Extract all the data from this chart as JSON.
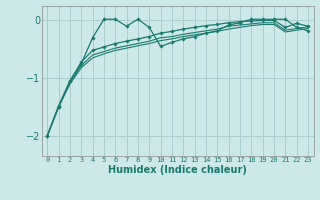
{
  "xlabel": "Humidex (Indice chaleur)",
  "bg_color": "#cce8e8",
  "grid_color": "#aacccc",
  "line_color": "#1a7a6e",
  "xlim": [
    -0.5,
    23.5
  ],
  "ylim": [
    -2.35,
    0.25
  ],
  "yticks": [
    0,
    -1,
    -2
  ],
  "xticks": [
    0,
    1,
    2,
    3,
    4,
    5,
    6,
    7,
    8,
    9,
    10,
    11,
    12,
    13,
    14,
    15,
    16,
    17,
    18,
    19,
    20,
    21,
    22,
    23
  ],
  "series": [
    {
      "x": [
        0,
        1,
        2,
        3,
        4,
        5,
        6,
        7,
        8,
        9,
        10,
        11,
        12,
        13,
        14,
        15,
        16,
        17,
        18,
        19,
        20,
        21,
        22,
        23
      ],
      "y": [
        -2.0,
        -1.5,
        -1.05,
        -0.75,
        -0.3,
        0.02,
        0.02,
        -0.1,
        0.02,
        -0.12,
        -0.45,
        -0.38,
        -0.32,
        -0.28,
        -0.22,
        -0.18,
        -0.08,
        -0.04,
        0.02,
        0.02,
        0.02,
        0.02,
        -0.12,
        -0.18
      ],
      "marker": true,
      "linewidth": 0.9
    },
    {
      "x": [
        0,
        1,
        2,
        3,
        4,
        5,
        6,
        7,
        8,
        9,
        10,
        11,
        12,
        13,
        14,
        15,
        16,
        17,
        18,
        19,
        20,
        21,
        22,
        23
      ],
      "y": [
        -2.0,
        -1.5,
        -1.1,
        -0.82,
        -0.65,
        -0.58,
        -0.52,
        -0.48,
        -0.44,
        -0.4,
        -0.35,
        -0.32,
        -0.28,
        -0.25,
        -0.22,
        -0.19,
        -0.15,
        -0.12,
        -0.09,
        -0.07,
        -0.07,
        -0.2,
        -0.17,
        -0.14
      ],
      "marker": false,
      "linewidth": 0.8
    },
    {
      "x": [
        0,
        1,
        2,
        3,
        4,
        5,
        6,
        7,
        8,
        9,
        10,
        11,
        12,
        13,
        14,
        15,
        16,
        17,
        18,
        19,
        20,
        21,
        22,
        23
      ],
      "y": [
        -2.0,
        -1.5,
        -1.08,
        -0.78,
        -0.6,
        -0.54,
        -0.48,
        -0.44,
        -0.4,
        -0.36,
        -0.3,
        -0.28,
        -0.24,
        -0.21,
        -0.18,
        -0.15,
        -0.1,
        -0.08,
        -0.06,
        -0.04,
        -0.04,
        -0.17,
        -0.14,
        -0.11
      ],
      "marker": false,
      "linewidth": 0.8
    },
    {
      "x": [
        0,
        1,
        2,
        3,
        4,
        5,
        6,
        7,
        8,
        9,
        10,
        11,
        12,
        13,
        14,
        15,
        16,
        17,
        18,
        19,
        20,
        21,
        22,
        23
      ],
      "y": [
        -2.0,
        -1.48,
        -1.05,
        -0.72,
        -0.52,
        -0.46,
        -0.4,
        -0.36,
        -0.32,
        -0.28,
        -0.22,
        -0.19,
        -0.15,
        -0.12,
        -0.09,
        -0.07,
        -0.04,
        -0.02,
        -0.01,
        0.0,
        0.0,
        -0.12,
        -0.05,
        -0.1
      ],
      "marker": true,
      "linewidth": 0.9
    }
  ]
}
